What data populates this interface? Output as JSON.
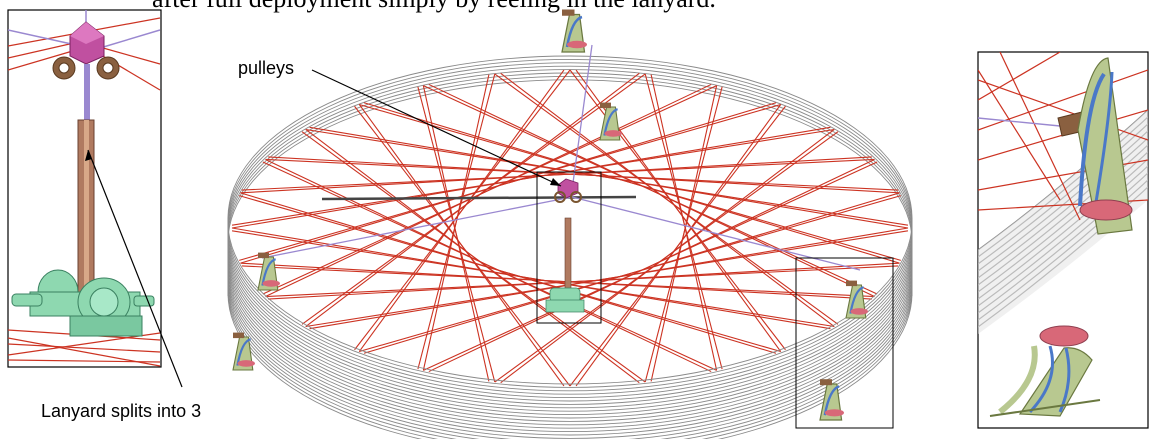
{
  "caption_text": "after full deployment simply by reeling in the lanyard.",
  "labels": {
    "pulleys": "pulleys",
    "lanyard": "Lanyard splits into 3"
  },
  "colors": {
    "string": "#cc3322",
    "ring": "#8a8a8a",
    "pulley_block": "#c050a0",
    "lanyard_rod": "#b07a60",
    "winch": "#8ed8b0",
    "bracket": "#b8c890",
    "spring_arch": "#4a78c8",
    "guide_line": "#9a88d0"
  }
}
